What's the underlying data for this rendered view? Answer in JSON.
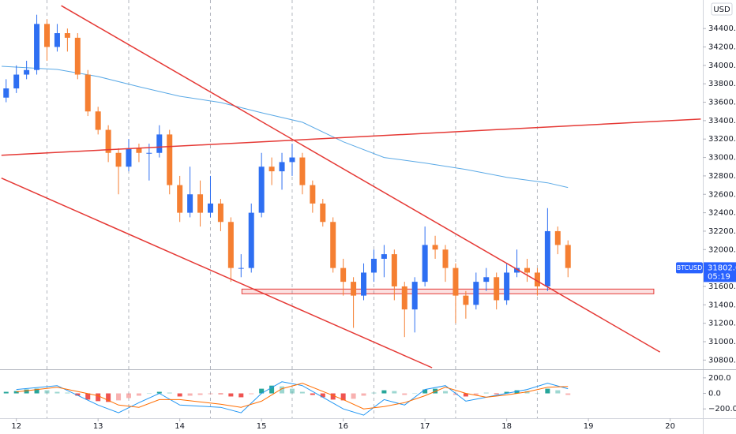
{
  "chart_data": {
    "type": "candlestick",
    "currency": "USD",
    "up_color": "#2e6ff2",
    "down_color": "#f57f32",
    "x": [
      11.875,
      12,
      12.125,
      12.25,
      12.375,
      12.5,
      12.625,
      12.75,
      12.875,
      13,
      13.125,
      13.25,
      13.375,
      13.5,
      13.625,
      13.75,
      13.875,
      14,
      14.125,
      14.25,
      14.375,
      14.5,
      14.625,
      14.75,
      14.875,
      15,
      15.125,
      15.25,
      15.375,
      15.5,
      15.625,
      15.75,
      15.875,
      16,
      16.125,
      16.25,
      16.375,
      16.5,
      16.625,
      16.75,
      16.875,
      17,
      17.125,
      17.25,
      17.375,
      17.5,
      17.625,
      17.75,
      17.875,
      18,
      18.125,
      18.25,
      18.375,
      18.5,
      18.625,
      18.75
    ],
    "open": [
      33650,
      33750,
      33900,
      33950,
      34450,
      34200,
      34350,
      34300,
      33900,
      33500,
      33300,
      33050,
      32900,
      33100,
      33050,
      33050,
      33250,
      32700,
      32400,
      32600,
      32400,
      32500,
      32300,
      31800,
      31800,
      32400,
      32900,
      32850,
      32950,
      33000,
      32700,
      32500,
      32300,
      31800,
      31650,
      31500,
      31750,
      31900,
      31950,
      31600,
      31350,
      31650,
      32050,
      32000,
      31800,
      31500,
      31400,
      31650,
      31700,
      31450,
      31750,
      31800,
      31750,
      31600,
      32200,
      32050
    ],
    "high": [
      33850,
      34000,
      34050,
      34550,
      34500,
      34450,
      34400,
      34350,
      33950,
      33550,
      33350,
      33100,
      33200,
      33150,
      33150,
      33350,
      33300,
      32800,
      32900,
      32750,
      32800,
      32550,
      32350,
      31950,
      32500,
      33050,
      33000,
      33050,
      33150,
      33050,
      32750,
      32550,
      32350,
      31900,
      31700,
      31850,
      32000,
      32050,
      32000,
      31650,
      31700,
      32250,
      32150,
      32050,
      31850,
      31550,
      31750,
      31800,
      31750,
      31850,
      32000,
      31900,
      31800,
      32450,
      32250,
      32100
    ],
    "low": [
      33600,
      33700,
      33850,
      33900,
      34050,
      34150,
      34150,
      33850,
      33450,
      33250,
      32950,
      32600,
      32850,
      32950,
      32750,
      33000,
      32600,
      32300,
      32350,
      32250,
      32350,
      32200,
      31650,
      31700,
      31750,
      32350,
      32700,
      32650,
      32800,
      32600,
      32400,
      32250,
      31750,
      31500,
      31150,
      31450,
      31650,
      31700,
      31450,
      31050,
      31100,
      31600,
      31900,
      31650,
      31200,
      31250,
      31350,
      31550,
      31350,
      31400,
      31700,
      31650,
      31500,
      31550,
      31950,
      31700
    ],
    "close": [
      33750,
      33900,
      33950,
      34450,
      34200,
      34350,
      34300,
      33900,
      33500,
      33300,
      33050,
      32900,
      33100,
      33050,
      33050,
      33250,
      32700,
      32400,
      32600,
      32400,
      32500,
      32300,
      31800,
      31800,
      32400,
      32900,
      32850,
      32950,
      33000,
      32700,
      32500,
      32300,
      31800,
      31650,
      31500,
      31750,
      31900,
      31950,
      31600,
      31350,
      31650,
      32050,
      32000,
      31800,
      31500,
      31400,
      31650,
      31700,
      31450,
      31750,
      31800,
      31750,
      31600,
      32200,
      32050,
      31800
    ],
    "xlim": [
      11.8,
      20.4
    ],
    "xticks": [
      12,
      13,
      14,
      15,
      16,
      17,
      18,
      19,
      20
    ],
    "ylim": [
      30700,
      34710
    ],
    "yticks": [
      {
        "value": 30800,
        "label": "30800.0"
      },
      {
        "value": 31000,
        "label": "31000.0"
      },
      {
        "value": 31200,
        "label": "31200.0"
      },
      {
        "value": 31400,
        "label": "31400.0"
      },
      {
        "value": 31600,
        "label": "31600.0"
      },
      {
        "value": 31800,
        "label": "31800.0"
      },
      {
        "value": 32000,
        "label": "32000.0"
      },
      {
        "value": 32200,
        "label": "32200.0"
      },
      {
        "value": 32400,
        "label": "32400.0"
      },
      {
        "value": 32600,
        "label": "32600.0"
      },
      {
        "value": 32800,
        "label": "32800.0"
      },
      {
        "value": 33000,
        "label": "33000.0"
      },
      {
        "value": 33200,
        "label": "33200.0"
      },
      {
        "value": 33400,
        "label": "33400.0"
      },
      {
        "value": 33600,
        "label": "33600.0"
      },
      {
        "value": 33800,
        "label": "33800.0"
      },
      {
        "value": 34000,
        "label": "34000.0"
      },
      {
        "value": 34200,
        "label": "34200.0"
      },
      {
        "value": 34400,
        "label": "34400.0"
      }
    ],
    "session_breaks": [
      12.375,
      13.375,
      14.375,
      15.375,
      16.375,
      17.375,
      18.375
    ],
    "moving_average": {
      "color": "#5aa9e6",
      "x": [
        11.82,
        12.5,
        13,
        13.5,
        14,
        14.5,
        15,
        15.5,
        16,
        16.5,
        17,
        17.5,
        18,
        18.5,
        18.75
      ],
      "values": [
        33990,
        33956,
        33879,
        33768,
        33665,
        33597,
        33486,
        33383,
        33170,
        33000,
        32940,
        32870,
        32785,
        32725,
        32674
      ]
    },
    "trend_lines": [
      {
        "color": "#e53935",
        "x": [
          12.55,
          19.875
        ],
        "y": [
          34648,
          30888
        ]
      },
      {
        "color": "#e53935",
        "x": [
          11.817,
          20.375
        ],
        "y": [
          33024,
          33417
        ]
      },
      {
        "color": "#e53935",
        "x": [
          11.817,
          17.087
        ],
        "y": [
          32776,
          30717
        ]
      }
    ],
    "support_zone": {
      "color": "#e53935",
      "x": [
        14.76,
        19.8
      ],
      "y": [
        31520,
        31571
      ]
    },
    "last_price": {
      "symbol": "BTCUSD",
      "value": 31802,
      "label": "31802.0",
      "countdown": "05:19",
      "color": "#2962ff"
    },
    "macd": {
      "ylim": [
        -320,
        290
      ],
      "yticks": [
        {
          "value": 200,
          "label": "200.0"
        },
        {
          "value": 0,
          "label": "0.0"
        },
        {
          "value": -200,
          "label": "−200.0"
        }
      ],
      "histogram": [
        20,
        30,
        50,
        60,
        40,
        20,
        10,
        -30,
        -80,
        -100,
        -110,
        -90,
        -60,
        -30,
        0,
        20,
        10,
        -40,
        -30,
        -20,
        -10,
        -10,
        -40,
        -50,
        -10,
        60,
        100,
        90,
        60,
        20,
        -20,
        -50,
        -80,
        -90,
        -70,
        -30,
        10,
        40,
        30,
        -20,
        0,
        50,
        60,
        30,
        -20,
        -40,
        -20,
        10,
        -10,
        20,
        40,
        30,
        0,
        60,
        40,
        -20
      ],
      "positive_color": "#26a69a",
      "negative_color": "#ef5350",
      "x": [
        12,
        12.5,
        13,
        13.25,
        13.5,
        13.75,
        14,
        14.5,
        14.75,
        15,
        15.25,
        15.5,
        16,
        16.25,
        16.5,
        16.75,
        17,
        17.25,
        17.5,
        17.75,
        18,
        18.25,
        18.5,
        18.75
      ],
      "macd": [
        50,
        100,
        -150,
        -250,
        -120,
        0,
        -150,
        -180,
        -250,
        0,
        150,
        100,
        -200,
        -280,
        -80,
        -150,
        50,
        100,
        -100,
        -50,
        0,
        50,
        130,
        60
      ],
      "signal": [
        20,
        80,
        -30,
        -150,
        -180,
        -80,
        -80,
        -140,
        -180,
        -100,
        60,
        130,
        -80,
        -200,
        -170,
        -120,
        -30,
        80,
        0,
        -50,
        -20,
        20,
        80,
        90
      ],
      "macd_color": "#2196f3",
      "signal_color": "#ff6d00"
    }
  }
}
